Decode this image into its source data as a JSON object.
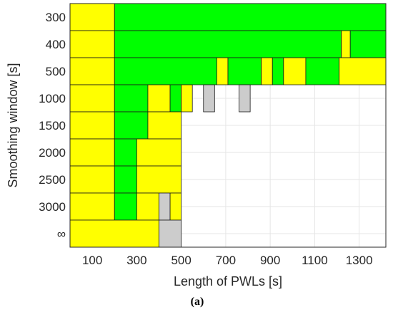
{
  "chart_data": {
    "type": "heatmap",
    "xlabel": "Length of PWLs [s]",
    "ylabel": "Smoothing window [s]",
    "caption": "(a)",
    "x_ticks": [
      {
        "label": "100",
        "value": 100
      },
      {
        "label": "300",
        "value": 300
      },
      {
        "label": "500",
        "value": 500
      },
      {
        "label": "700",
        "value": 700
      },
      {
        "label": "900",
        "value": 900
      },
      {
        "label": "1100",
        "value": 1100
      },
      {
        "label": "1300",
        "value": 1300
      }
    ],
    "rows": [
      "300",
      "400",
      "500",
      "1000",
      "1500",
      "2000",
      "2500",
      "3000",
      "∞"
    ],
    "xlim": [
      0,
      1420
    ],
    "grid": true,
    "colors": {
      "green": "#00ff00",
      "yellow": "#ffff00",
      "gray": "#cccccc"
    },
    "cells": [
      {
        "row": "300",
        "x": [
          0,
          200
        ],
        "color": "yellow"
      },
      {
        "row": "300",
        "x": [
          200,
          1420
        ],
        "color": "green"
      },
      {
        "row": "400",
        "x": [
          0,
          200
        ],
        "color": "yellow"
      },
      {
        "row": "400",
        "x": [
          200,
          1220
        ],
        "color": "green"
      },
      {
        "row": "400",
        "x": [
          1220,
          1260
        ],
        "color": "yellow"
      },
      {
        "row": "400",
        "x": [
          1260,
          1420
        ],
        "color": "green"
      },
      {
        "row": "500",
        "x": [
          0,
          200
        ],
        "color": "yellow"
      },
      {
        "row": "500",
        "x": [
          200,
          660
        ],
        "color": "green"
      },
      {
        "row": "500",
        "x": [
          660,
          710
        ],
        "color": "yellow"
      },
      {
        "row": "500",
        "x": [
          710,
          860
        ],
        "color": "green"
      },
      {
        "row": "500",
        "x": [
          860,
          910
        ],
        "color": "yellow"
      },
      {
        "row": "500",
        "x": [
          910,
          960
        ],
        "color": "green"
      },
      {
        "row": "500",
        "x": [
          960,
          1060
        ],
        "color": "yellow"
      },
      {
        "row": "500",
        "x": [
          1060,
          1210
        ],
        "color": "green"
      },
      {
        "row": "500",
        "x": [
          1210,
          1420
        ],
        "color": "yellow"
      },
      {
        "row": "1000",
        "x": [
          0,
          200
        ],
        "color": "yellow"
      },
      {
        "row": "1000",
        "x": [
          200,
          350
        ],
        "color": "green"
      },
      {
        "row": "1000",
        "x": [
          350,
          450
        ],
        "color": "yellow"
      },
      {
        "row": "1000",
        "x": [
          450,
          500
        ],
        "color": "green"
      },
      {
        "row": "1000",
        "x": [
          500,
          550
        ],
        "color": "yellow"
      },
      {
        "row": "1000",
        "x": [
          600,
          650
        ],
        "color": "gray"
      },
      {
        "row": "1000",
        "x": [
          760,
          810
        ],
        "color": "gray"
      },
      {
        "row": "1500",
        "x": [
          0,
          200
        ],
        "color": "yellow"
      },
      {
        "row": "1500",
        "x": [
          200,
          350
        ],
        "color": "green"
      },
      {
        "row": "1500",
        "x": [
          350,
          500
        ],
        "color": "yellow"
      },
      {
        "row": "2000",
        "x": [
          0,
          200
        ],
        "color": "yellow"
      },
      {
        "row": "2000",
        "x": [
          200,
          300
        ],
        "color": "green"
      },
      {
        "row": "2000",
        "x": [
          300,
          500
        ],
        "color": "yellow"
      },
      {
        "row": "2500",
        "x": [
          0,
          200
        ],
        "color": "yellow"
      },
      {
        "row": "2500",
        "x": [
          200,
          300
        ],
        "color": "green"
      },
      {
        "row": "2500",
        "x": [
          300,
          500
        ],
        "color": "yellow"
      },
      {
        "row": "3000",
        "x": [
          0,
          200
        ],
        "color": "yellow"
      },
      {
        "row": "3000",
        "x": [
          200,
          300
        ],
        "color": "green"
      },
      {
        "row": "3000",
        "x": [
          300,
          400
        ],
        "color": "yellow"
      },
      {
        "row": "3000",
        "x": [
          400,
          450
        ],
        "color": "gray"
      },
      {
        "row": "3000",
        "x": [
          450,
          500
        ],
        "color": "yellow"
      },
      {
        "row": "∞",
        "x": [
          0,
          400
        ],
        "color": "yellow"
      },
      {
        "row": "∞",
        "x": [
          400,
          500
        ],
        "color": "gray"
      }
    ]
  }
}
